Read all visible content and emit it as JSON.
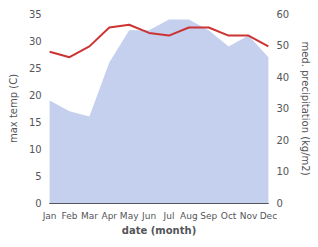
{
  "chart_data": {
    "type": "line",
    "xlabel": "date (month)",
    "ylabel": "max temp (C)",
    "y2label": "med. precipitation (kg/m2)",
    "categories": [
      "Jan",
      "Feb",
      "Mar",
      "Apr",
      "May",
      "Jun",
      "Jul",
      "Aug",
      "Sep",
      "Oct",
      "Nov",
      "Dec"
    ],
    "series": [
      {
        "type": "area",
        "color": "#c5d0ee",
        "values": [
          19,
          17,
          16,
          26,
          32,
          32,
          34,
          34,
          32,
          29,
          31,
          27
        ]
      },
      {
        "type": "line",
        "color": "#cc3333",
        "values": [
          28,
          27,
          29,
          32.5,
          33,
          31.5,
          31,
          32.5,
          32.5,
          31,
          31,
          29
        ]
      }
    ],
    "ylim": [
      0,
      35
    ],
    "yticks": [
      0,
      5,
      10,
      15,
      20,
      25,
      30,
      35
    ],
    "y2lim": [
      0,
      60
    ],
    "y2ticks": [
      0,
      10,
      20,
      30,
      40,
      50,
      60
    ],
    "grid": false
  }
}
